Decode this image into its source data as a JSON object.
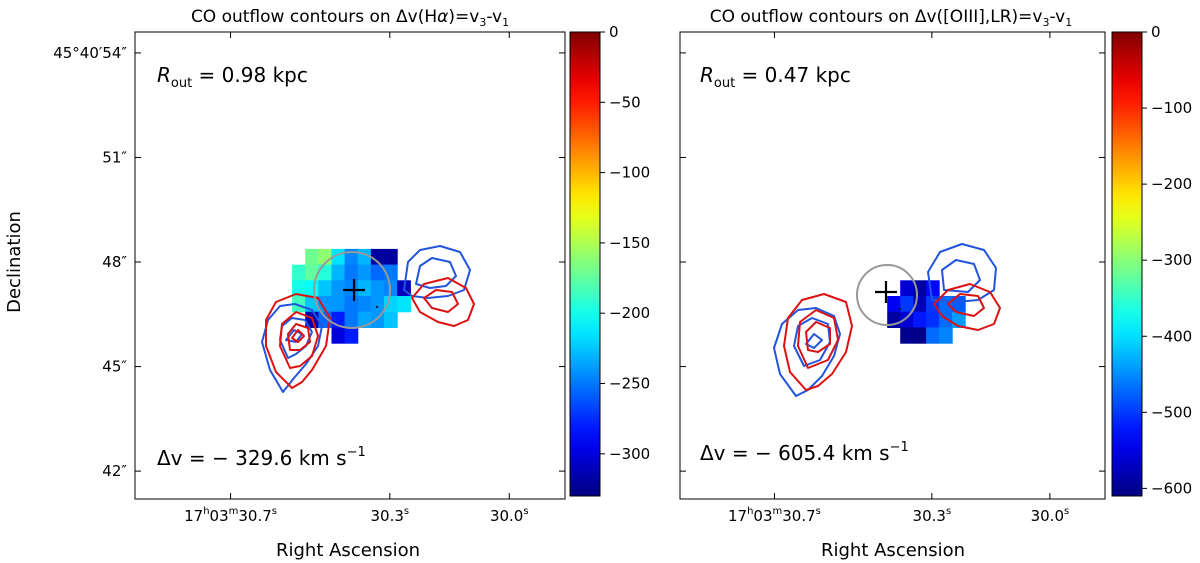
{
  "figure": {
    "ylabel": "Declination",
    "xlabel": "Right Ascension"
  },
  "chart_data": [
    {
      "type": "heatmap",
      "title_prefix": "CO outflow contours on Δv(H",
      "title_alpha": "α",
      "title_suffix": ")=v",
      "title_sub3": "3",
      "title_dash": "-v",
      "title_sub1": "1",
      "r_out_label": "R",
      "r_out_sub": "out",
      "r_out_value": " = 0.98 kpc",
      "dv_label": "Δv = − 329.6 km s",
      "dv_exp": "−1",
      "x_ticks": [
        {
          "h": "17",
          "m": "03",
          "s": "30.7",
          "sup_s": "s",
          "ra_sec": 30.7
        },
        {
          "s": "30.3",
          "sup_s": "s",
          "ra_sec": 30.3
        },
        {
          "s": "30.0",
          "sup_s": "s",
          "ra_sec": 30.0
        }
      ],
      "y_ticks": [
        {
          "label": "45°40′54″",
          "dec_arcsec": 54
        },
        {
          "label": "51″",
          "dec_arcsec": 51
        },
        {
          "label": "48″",
          "dec_arcsec": 48
        },
        {
          "label": "45″",
          "dec_arcsec": 45
        },
        {
          "label": "42″",
          "dec_arcsec": 42
        }
      ],
      "xlim_ra_sec": [
        30.94,
        29.86
      ],
      "ylim_dec_arcsec": [
        41.2,
        54.6
      ],
      "colorbar": {
        "colormap": "jet",
        "vmin": -330,
        "vmax": 0,
        "ticks": [
          0,
          -50,
          -100,
          -150,
          -200,
          -250,
          -300
        ]
      },
      "aperture_radius_kpc": 0.98,
      "delta_v_kms": -329.6,
      "center": {
        "ra_sec": 30.34,
        "dec_arcsec": 47.05
      },
      "pixels": [
        {
          "ra_sec": 30.496,
          "dec_arcsec": 48.15,
          "v": -170
        },
        {
          "ra_sec": 30.463,
          "dec_arcsec": 48.15,
          "v": -160
        },
        {
          "ra_sec": 30.43,
          "dec_arcsec": 48.15,
          "v": -215
        },
        {
          "ra_sec": 30.397,
          "dec_arcsec": 48.15,
          "v": -245
        },
        {
          "ra_sec": 30.364,
          "dec_arcsec": 48.15,
          "v": -230
        },
        {
          "ra_sec": 30.331,
          "dec_arcsec": 48.15,
          "v": -320
        },
        {
          "ra_sec": 30.298,
          "dec_arcsec": 48.15,
          "v": -320
        },
        {
          "ra_sec": 30.529,
          "dec_arcsec": 47.7,
          "v": -190
        },
        {
          "ra_sec": 30.496,
          "dec_arcsec": 47.7,
          "v": -175
        },
        {
          "ra_sec": 30.463,
          "dec_arcsec": 47.7,
          "v": -195
        },
        {
          "ra_sec": 30.43,
          "dec_arcsec": 47.7,
          "v": -230
        },
        {
          "ra_sec": 30.397,
          "dec_arcsec": 47.7,
          "v": -250
        },
        {
          "ra_sec": 30.364,
          "dec_arcsec": 47.7,
          "v": -240
        },
        {
          "ra_sec": 30.331,
          "dec_arcsec": 47.7,
          "v": -255
        },
        {
          "ra_sec": 30.298,
          "dec_arcsec": 47.7,
          "v": -250
        },
        {
          "ra_sec": 30.529,
          "dec_arcsec": 47.25,
          "v": -200
        },
        {
          "ra_sec": 30.496,
          "dec_arcsec": 47.25,
          "v": -205
        },
        {
          "ra_sec": 30.463,
          "dec_arcsec": 47.25,
          "v": -225
        },
        {
          "ra_sec": 30.43,
          "dec_arcsec": 47.25,
          "v": -240
        },
        {
          "ra_sec": 30.397,
          "dec_arcsec": 47.25,
          "v": -245
        },
        {
          "ra_sec": 30.364,
          "dec_arcsec": 47.25,
          "v": -230
        },
        {
          "ra_sec": 30.331,
          "dec_arcsec": 47.25,
          "v": -240
        },
        {
          "ra_sec": 30.298,
          "dec_arcsec": 47.25,
          "v": -245
        },
        {
          "ra_sec": 30.265,
          "dec_arcsec": 47.25,
          "v": -310
        },
        {
          "ra_sec": 30.529,
          "dec_arcsec": 46.8,
          "v": -185
        },
        {
          "ra_sec": 30.496,
          "dec_arcsec": 46.8,
          "v": -225
        },
        {
          "ra_sec": 30.463,
          "dec_arcsec": 46.8,
          "v": -240
        },
        {
          "ra_sec": 30.43,
          "dec_arcsec": 46.8,
          "v": -240
        },
        {
          "ra_sec": 30.397,
          "dec_arcsec": 46.8,
          "v": -250
        },
        {
          "ra_sec": 30.364,
          "dec_arcsec": 46.8,
          "v": -245
        },
        {
          "ra_sec": 30.331,
          "dec_arcsec": 46.8,
          "v": -240
        },
        {
          "ra_sec": 30.298,
          "dec_arcsec": 46.8,
          "v": -220
        },
        {
          "ra_sec": 30.265,
          "dec_arcsec": 46.8,
          "v": -215
        },
        {
          "ra_sec": 30.496,
          "dec_arcsec": 46.35,
          "v": -315
        },
        {
          "ra_sec": 30.463,
          "dec_arcsec": 46.35,
          "v": -255
        },
        {
          "ra_sec": 30.43,
          "dec_arcsec": 46.35,
          "v": -280
        },
        {
          "ra_sec": 30.397,
          "dec_arcsec": 46.35,
          "v": -250
        },
        {
          "ra_sec": 30.364,
          "dec_arcsec": 46.35,
          "v": -235
        },
        {
          "ra_sec": 30.331,
          "dec_arcsec": 46.35,
          "v": -240
        },
        {
          "ra_sec": 30.298,
          "dec_arcsec": 46.35,
          "v": -225
        },
        {
          "ra_sec": 30.43,
          "dec_arcsec": 45.9,
          "v": -300
        },
        {
          "ra_sec": 30.397,
          "dec_arcsec": 45.9,
          "v": -280
        }
      ]
    },
    {
      "type": "heatmap",
      "title_prefix": "CO outflow contours on Δv([OIII],LR)=v",
      "title_sub3": "3",
      "title_dash": "-v",
      "title_sub1": "1",
      "r_out_label": "R",
      "r_out_sub": "out",
      "r_out_value": " = 0.47 kpc",
      "dv_label": "Δv = − 605.4 km s",
      "dv_exp": "−1",
      "x_ticks": [
        {
          "h": "17",
          "m": "03",
          "s": "30.7",
          "sup_s": "s",
          "ra_sec": 30.7
        },
        {
          "s": "30.3",
          "sup_s": "s",
          "ra_sec": 30.3
        },
        {
          "s": "30.0",
          "sup_s": "s",
          "ra_sec": 30.0
        }
      ],
      "y_ticks": [
        {
          "dec_arcsec": 54
        },
        {
          "dec_arcsec": 51
        },
        {
          "dec_arcsec": 48
        },
        {
          "dec_arcsec": 45
        },
        {
          "dec_arcsec": 42
        }
      ],
      "xlim_ra_sec": [
        30.94,
        29.86
      ],
      "ylim_dec_arcsec": [
        41.2,
        54.6
      ],
      "colorbar": {
        "colormap": "jet",
        "vmin": -610,
        "vmax": 0,
        "ticks": [
          0,
          -100,
          -200,
          -300,
          -400,
          -500,
          -600
        ]
      },
      "aperture_radius_kpc": 0.47,
      "delta_v_kms": -605.4,
      "center": {
        "ra_sec": 30.31,
        "dec_arcsec": 46.85
      },
      "pixels": [
        {
          "ra_sec": 30.364,
          "dec_arcsec": 47.25,
          "v": -560
        },
        {
          "ra_sec": 30.331,
          "dec_arcsec": 47.25,
          "v": -590
        },
        {
          "ra_sec": 30.298,
          "dec_arcsec": 47.25,
          "v": -530
        },
        {
          "ra_sec": 30.397,
          "dec_arcsec": 46.8,
          "v": -540
        },
        {
          "ra_sec": 30.364,
          "dec_arcsec": 46.8,
          "v": -500
        },
        {
          "ra_sec": 30.331,
          "dec_arcsec": 46.8,
          "v": -575
        },
        {
          "ra_sec": 30.298,
          "dec_arcsec": 46.8,
          "v": -500
        },
        {
          "ra_sec": 30.265,
          "dec_arcsec": 46.8,
          "v": -470
        },
        {
          "ra_sec": 30.232,
          "dec_arcsec": 46.8,
          "v": -480
        },
        {
          "ra_sec": 30.397,
          "dec_arcsec": 46.35,
          "v": -590
        },
        {
          "ra_sec": 30.364,
          "dec_arcsec": 46.35,
          "v": -560
        },
        {
          "ra_sec": 30.331,
          "dec_arcsec": 46.35,
          "v": -520
        },
        {
          "ra_sec": 30.298,
          "dec_arcsec": 46.35,
          "v": -505
        },
        {
          "ra_sec": 30.265,
          "dec_arcsec": 46.35,
          "v": -470
        },
        {
          "ra_sec": 30.232,
          "dec_arcsec": 46.35,
          "v": -440
        },
        {
          "ra_sec": 30.364,
          "dec_arcsec": 45.9,
          "v": -600
        },
        {
          "ra_sec": 30.331,
          "dec_arcsec": 45.9,
          "v": -605
        },
        {
          "ra_sec": 30.298,
          "dec_arcsec": 45.9,
          "v": -470
        },
        {
          "ra_sec": 30.265,
          "dec_arcsec": 45.9,
          "v": -455
        }
      ]
    }
  ],
  "contours": {
    "blue_color": "#2255dd",
    "red_color": "#dd1111",
    "aperture_color": "#999999"
  }
}
